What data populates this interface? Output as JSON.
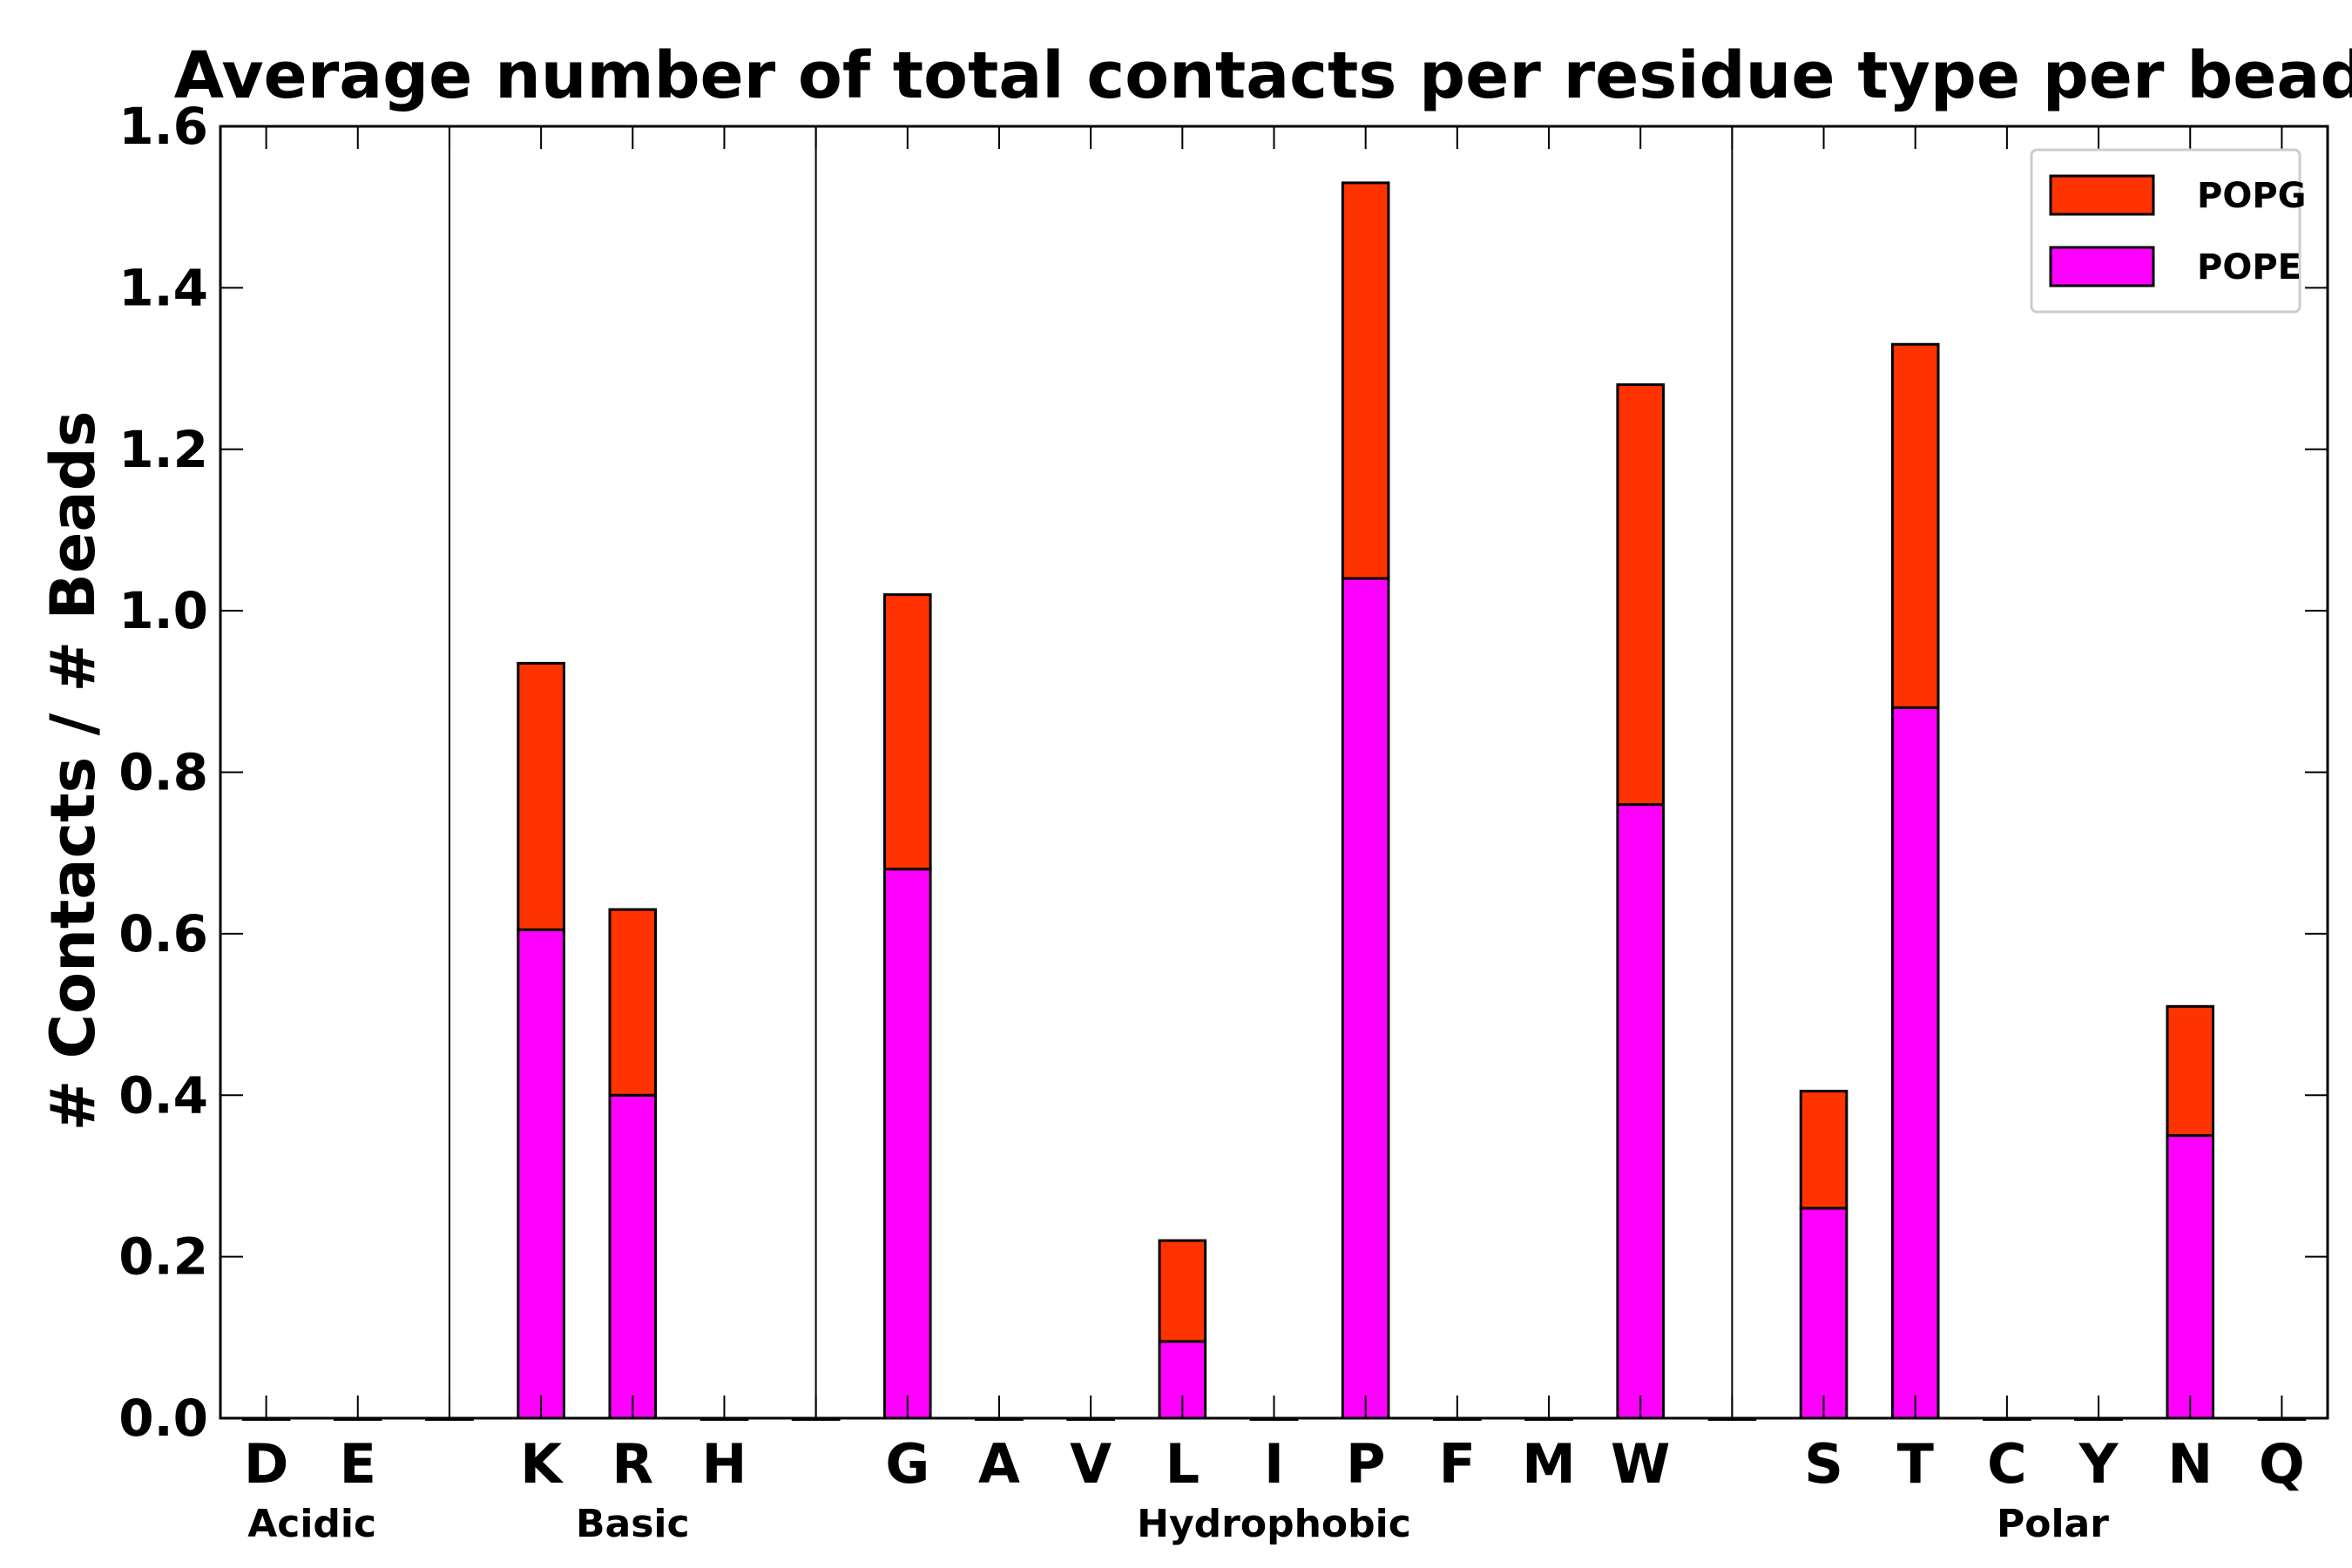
{
  "chart_data": {
    "type": "bar",
    "stacked": true,
    "title": "Average number of total contacts per residue type per bead",
    "xlabel": "",
    "ylabel": "# Contacts / # Beads",
    "ylim": [
      0,
      1.6
    ],
    "yticks": [
      "0.0",
      "0.2",
      "0.4",
      "0.6",
      "0.8",
      "1.0",
      "1.2",
      "1.4",
      "1.6"
    ],
    "categories": [
      "D",
      "E",
      "",
      "K",
      "R",
      "H",
      "",
      "G",
      "A",
      "V",
      "L",
      "I",
      "P",
      "F",
      "M",
      "W",
      "",
      "S",
      "T",
      "C",
      "Y",
      "N",
      "Q"
    ],
    "series": [
      {
        "name": "POPE",
        "color": "#ff00ff",
        "values": [
          0,
          0,
          0,
          0.605,
          0.4,
          0,
          0,
          0.68,
          0,
          0,
          0.095,
          0,
          1.04,
          0,
          0,
          0.76,
          0,
          0.26,
          0.88,
          0,
          0,
          0.35,
          0
        ]
      },
      {
        "name": "POPG",
        "color": "#ff3300",
        "values": [
          0,
          0,
          0,
          0.33,
          0.23,
          0,
          0,
          0.34,
          0,
          0,
          0.125,
          0,
          0.49,
          0,
          0,
          0.52,
          0,
          0.145,
          0.45,
          0,
          0,
          0.16,
          0
        ]
      }
    ],
    "groups": [
      {
        "label": "Acidic",
        "start": "D",
        "end": "E"
      },
      {
        "label": "Basic",
        "start": "K",
        "end": "H"
      },
      {
        "label": "Hydrophobic",
        "start": "G",
        "end": "W"
      },
      {
        "label": "Polar",
        "start": "S",
        "end": "Q"
      }
    ],
    "group_separators_after_index": [
      2,
      6,
      16
    ],
    "legend": {
      "position": "top-right",
      "entries": [
        {
          "label": "POPG",
          "color": "#ff3300"
        },
        {
          "label": "POPE",
          "color": "#ff00ff"
        }
      ]
    },
    "grid": false
  }
}
